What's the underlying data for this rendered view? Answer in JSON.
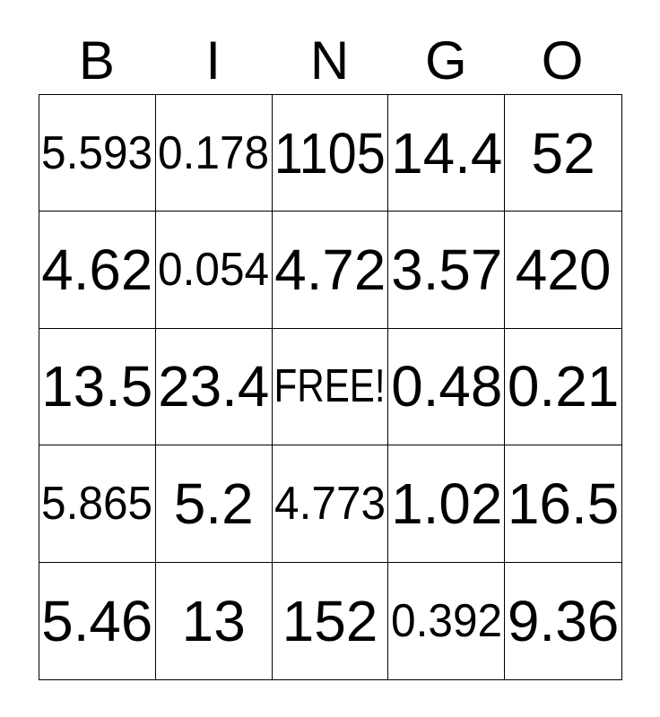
{
  "header": {
    "letters": [
      "B",
      "I",
      "N",
      "G",
      "O"
    ]
  },
  "grid": {
    "rows": [
      [
        "5.593",
        "0.178",
        "1105",
        "14.4",
        "52"
      ],
      [
        "4.62",
        "0.054",
        "4.72",
        "3.57",
        "420"
      ],
      [
        "13.5",
        "23.4",
        "FREE!",
        "0.48",
        "0.21"
      ],
      [
        "5.865",
        "5.2",
        "4.773",
        "1.02",
        "16.5"
      ],
      [
        "5.46",
        "13",
        "152",
        "0.392",
        "9.36"
      ]
    ],
    "free_cell_label": "FREE!",
    "free_cell_position": "row 3, column 3"
  },
  "colors": {
    "background": "#ffffff",
    "text": "#000000",
    "grid_lines": "#000000"
  }
}
